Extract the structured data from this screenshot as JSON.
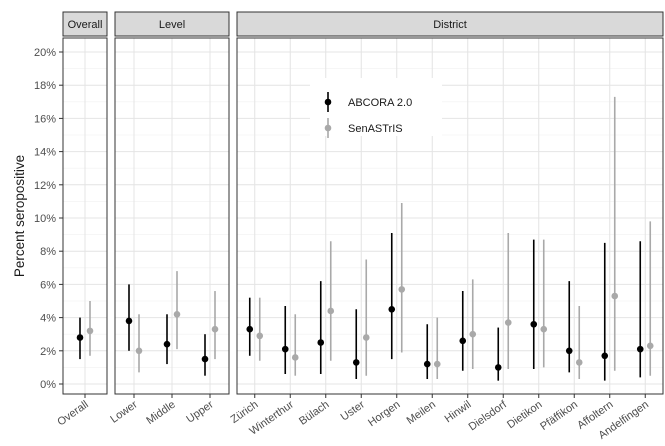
{
  "chart_data": {
    "type": "scatter",
    "subtype": "point-range faceted",
    "ylabel": "Percent seropositive",
    "xlabel": "",
    "ylim": [
      0,
      20
    ],
    "yticks": [
      0,
      2,
      4,
      6,
      8,
      10,
      12,
      14,
      16,
      18,
      20
    ],
    "ytick_labels": [
      "0%",
      "2%",
      "4%",
      "6%",
      "8%",
      "10%",
      "12%",
      "14%",
      "16%",
      "18%",
      "20%"
    ],
    "grid": true,
    "legend_position": "inside-top",
    "facets": [
      {
        "label": "Overall",
        "categories": [
          "Overall"
        ]
      },
      {
        "label": "Level",
        "categories": [
          "Lower",
          "Middle",
          "Upper"
        ]
      },
      {
        "label": "District",
        "categories": [
          "Zürich",
          "Winterthur",
          "Bülach",
          "Uster",
          "Horgen",
          "Meilen",
          "Hinwil",
          "Dielsdorf",
          "Dietikon",
          "Pfäffikon",
          "Affoltern",
          "Andelfingen"
        ]
      }
    ],
    "series": [
      {
        "name": "ABCORA 2.0",
        "color": "#000000",
        "values": [
          2.8,
          3.8,
          2.4,
          1.5,
          3.3,
          2.1,
          2.5,
          1.3,
          4.5,
          1.2,
          2.6,
          1.0,
          3.6,
          2.0,
          1.7,
          2.1
        ],
        "lower": [
          1.5,
          2.0,
          1.2,
          0.5,
          1.7,
          0.6,
          0.6,
          0.3,
          1.5,
          0.3,
          0.8,
          0.2,
          0.9,
          0.7,
          0.2,
          0.4
        ],
        "upper": [
          4.0,
          6.0,
          4.2,
          3.0,
          5.2,
          4.7,
          6.2,
          4.5,
          9.1,
          3.6,
          5.6,
          3.4,
          8.7,
          6.2,
          8.5,
          8.6
        ]
      },
      {
        "name": "SenASTrIS",
        "color": "#a9a9a9",
        "values": [
          3.2,
          2.0,
          4.2,
          3.3,
          2.9,
          1.6,
          4.4,
          2.8,
          5.7,
          1.2,
          3.0,
          3.7,
          3.3,
          1.3,
          5.3,
          2.3
        ],
        "lower": [
          1.7,
          0.7,
          2.1,
          1.5,
          1.4,
          0.5,
          1.4,
          0.5,
          1.9,
          0.3,
          0.9,
          0.9,
          1.0,
          0.3,
          0.8,
          0.5
        ],
        "upper": [
          5.0,
          4.2,
          6.8,
          5.6,
          5.2,
          4.2,
          8.6,
          7.5,
          10.9,
          4.0,
          6.3,
          9.1,
          8.7,
          4.7,
          17.3,
          9.8
        ]
      }
    ]
  }
}
